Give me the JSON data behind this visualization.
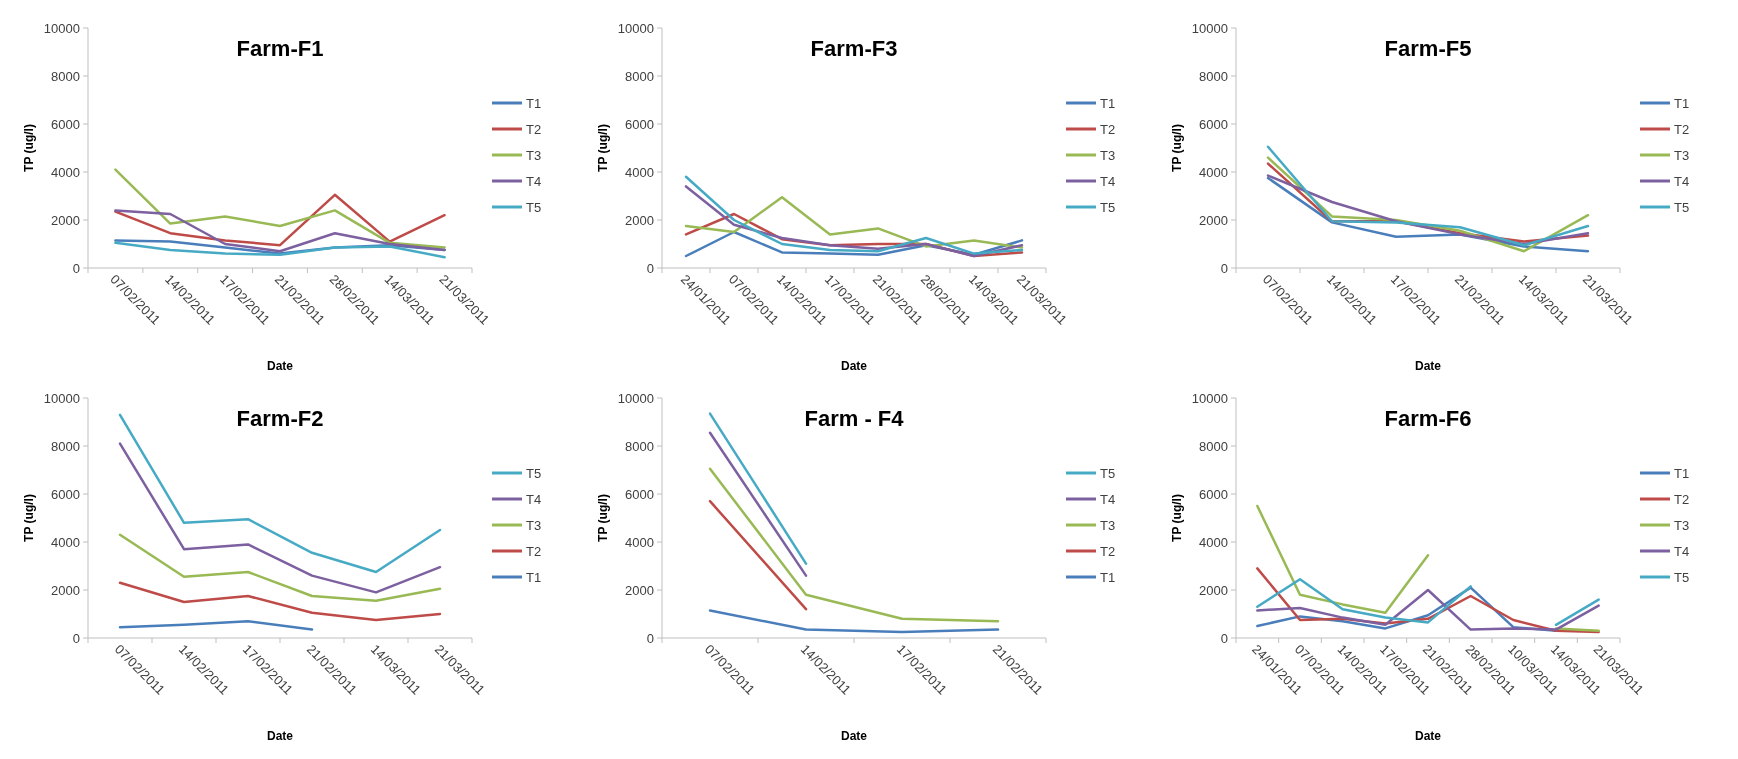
{
  "chart_data": [
    {
      "type": "line",
      "title": "Farm-F1",
      "xlabel": "Date",
      "ylabel": "TP (ug/l)",
      "categories": [
        "07/02/2011",
        "14/02/2011",
        "17/02/2011",
        "21/02/2011",
        "28/02/2011",
        "14/03/2011",
        "21/03/2011"
      ],
      "ylim": [
        0,
        10000
      ],
      "yticks": [
        0,
        2000,
        4000,
        6000,
        8000,
        10000
      ],
      "legend": "right",
      "series": [
        {
          "name": "T1",
          "color": "#4a7ebb",
          "values": [
            1150,
            1100,
            850,
            600,
            850,
            950,
            750
          ]
        },
        {
          "name": "T2",
          "color": "#be4b48",
          "values": [
            2350,
            1450,
            1150,
            950,
            3050,
            1100,
            2200
          ]
        },
        {
          "name": "T3",
          "color": "#98b954",
          "values": [
            4100,
            1850,
            2150,
            1750,
            2400,
            1050,
            850
          ]
        },
        {
          "name": "T4",
          "color": "#7d60a0",
          "values": [
            2400,
            2250,
            1000,
            700,
            1450,
            1000,
            750
          ]
        },
        {
          "name": "T5",
          "color": "#46aac5",
          "values": [
            1050,
            750,
            600,
            550,
            850,
            900,
            450
          ]
        }
      ]
    },
    {
      "type": "line",
      "title": "Farm-F3",
      "xlabel": "Date",
      "ylabel": "TP (ug/l)",
      "categories": [
        "24/01/2011",
        "07/02/2011",
        "14/02/2011",
        "17/02/2011",
        "21/02/2011",
        "28/02/2011",
        "14/03/2011",
        "21/03/2011"
      ],
      "ylim": [
        0,
        10000
      ],
      "yticks": [
        0,
        2000,
        4000,
        6000,
        8000,
        10000
      ],
      "legend": "right",
      "series": [
        {
          "name": "T1",
          "color": "#4a7ebb",
          "values": [
            500,
            1500,
            650,
            600,
            550,
            950,
            550,
            1150
          ]
        },
        {
          "name": "T2",
          "color": "#be4b48",
          "values": [
            1400,
            2250,
            1200,
            950,
            1000,
            1000,
            500,
            650
          ]
        },
        {
          "name": "T3",
          "color": "#98b954",
          "values": [
            1750,
            1500,
            2950,
            1400,
            1650,
            900,
            1150,
            850
          ]
        },
        {
          "name": "T4",
          "color": "#7d60a0",
          "values": [
            3400,
            1800,
            1250,
            950,
            800,
            1000,
            500,
            950
          ]
        },
        {
          "name": "T5",
          "color": "#46aac5",
          "values": [
            3800,
            2000,
            1000,
            750,
            700,
            1250,
            600,
            750
          ]
        }
      ]
    },
    {
      "type": "line",
      "title": "Farm-F5",
      "xlabel": "Date",
      "ylabel": "TP (ug/l)",
      "categories": [
        "07/02/2011",
        "14/02/2011",
        "17/02/2011",
        "21/02/2011",
        "14/03/2011",
        "21/03/2011"
      ],
      "ylim": [
        0,
        10000
      ],
      "yticks": [
        0,
        2000,
        4000,
        6000,
        8000,
        10000
      ],
      "legend": "right",
      "series": [
        {
          "name": "T1",
          "color": "#4a7ebb",
          "values": [
            3750,
            1900,
            1300,
            1400,
            900,
            700
          ]
        },
        {
          "name": "T2",
          "color": "#be4b48",
          "values": [
            4350,
            1950,
            1950,
            1450,
            1100,
            1350
          ]
        },
        {
          "name": "T3",
          "color": "#98b954",
          "values": [
            4600,
            2150,
            2000,
            1550,
            700,
            2200
          ]
        },
        {
          "name": "T4",
          "color": "#7d60a0",
          "values": [
            3850,
            2750,
            1950,
            1400,
            1000,
            1450
          ]
        },
        {
          "name": "T5",
          "color": "#46aac5",
          "values": [
            5050,
            1950,
            1900,
            1700,
            950,
            1750
          ]
        }
      ]
    },
    {
      "type": "line",
      "title": "Farm-F2",
      "xlabel": "Date",
      "ylabel": "TP (ug/l)",
      "categories": [
        "07/02/2011",
        "14/02/2011",
        "17/02/2011",
        "21/02/2011",
        "14/03/2011",
        "21/03/2011"
      ],
      "ylim": [
        0,
        10000
      ],
      "yticks": [
        0,
        2000,
        4000,
        6000,
        8000,
        10000
      ],
      "legend": "right",
      "series": [
        {
          "name": "T5",
          "color": "#46aac5",
          "values": [
            9300,
            4800,
            4950,
            3550,
            2750,
            4500
          ]
        },
        {
          "name": "T4",
          "color": "#7d60a0",
          "values": [
            8100,
            3700,
            3900,
            2600,
            1900,
            2950
          ]
        },
        {
          "name": "T3",
          "color": "#98b954",
          "values": [
            4300,
            2550,
            2750,
            1750,
            1550,
            2050
          ]
        },
        {
          "name": "T2",
          "color": "#be4b48",
          "values": [
            2300,
            1500,
            1750,
            1050,
            750,
            1000
          ]
        },
        {
          "name": "T1",
          "color": "#4a7ebb",
          "values": [
            450,
            550,
            700,
            350,
            null,
            null
          ]
        }
      ]
    },
    {
      "type": "line",
      "title": "Farm - F4",
      "xlabel": "Date",
      "ylabel": "TP (ug/l)",
      "categories": [
        "07/02/2011",
        "14/02/2011",
        "17/02/2011",
        "21/02/2011"
      ],
      "ylim": [
        0,
        10000
      ],
      "yticks": [
        0,
        2000,
        4000,
        6000,
        8000,
        10000
      ],
      "legend": "right",
      "series": [
        {
          "name": "T5",
          "color": "#46aac5",
          "values": [
            9350,
            3100,
            null,
            null
          ]
        },
        {
          "name": "T4",
          "color": "#7d60a0",
          "values": [
            8550,
            2600,
            null,
            null
          ]
        },
        {
          "name": "T3",
          "color": "#98b954",
          "values": [
            7050,
            1800,
            800,
            700
          ]
        },
        {
          "name": "T2",
          "color": "#be4b48",
          "values": [
            5700,
            1200,
            null,
            null
          ]
        },
        {
          "name": "T1",
          "color": "#4a7ebb",
          "values": [
            1150,
            350,
            250,
            350
          ]
        }
      ]
    },
    {
      "type": "line",
      "title": "Farm-F6",
      "xlabel": "Date",
      "ylabel": "TP (ug/l)",
      "categories": [
        "24/01/2011",
        "07/02/2011",
        "14/02/2011",
        "17/02/2011",
        "21/02/2011",
        "28/02/2011",
        "10/03/2011",
        "14/03/2011",
        "21/03/2011"
      ],
      "ylim": [
        0,
        10000
      ],
      "yticks": [
        0,
        2000,
        4000,
        6000,
        8000,
        10000
      ],
      "legend": "right",
      "series": [
        {
          "name": "T1",
          "color": "#4a7ebb",
          "values": [
            500,
            900,
            700,
            400,
            950,
            2100,
            450,
            300,
            null
          ]
        },
        {
          "name": "T2",
          "color": "#be4b48",
          "values": [
            2900,
            750,
            800,
            600,
            800,
            1750,
            750,
            300,
            250
          ]
        },
        {
          "name": "T3",
          "color": "#98b954",
          "values": [
            5500,
            1800,
            1400,
            1050,
            3450,
            null,
            null,
            400,
            300
          ]
        },
        {
          "name": "T4",
          "color": "#7d60a0",
          "values": [
            1150,
            1250,
            850,
            550,
            2000,
            350,
            400,
            350,
            1350
          ]
        },
        {
          "name": "T5",
          "color": "#46aac5",
          "values": [
            1300,
            2450,
            1200,
            850,
            650,
            2150,
            null,
            550,
            1600
          ]
        }
      ]
    }
  ]
}
